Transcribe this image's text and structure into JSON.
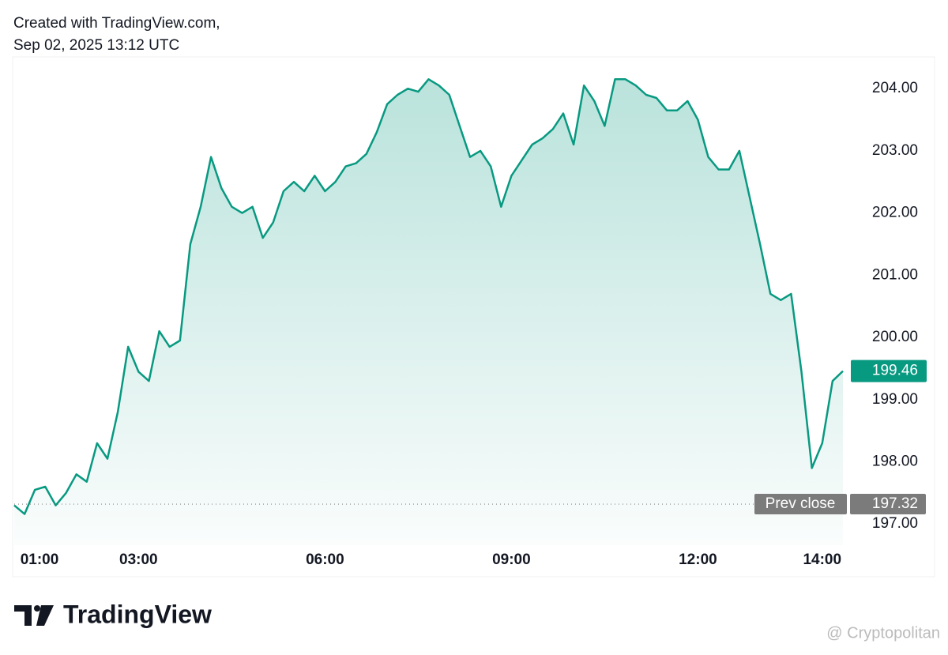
{
  "header": {
    "line1": "Created with TradingView.com,",
    "line2": "Sep 02, 2025 13:12 UTC"
  },
  "footer": {
    "logo": "TradingView",
    "watermark": "@ Cryptopolitan"
  },
  "chart_data": {
    "type": "area",
    "color": "#089981",
    "x": [
      "01:00",
      "01:10",
      "01:20",
      "01:30",
      "01:40",
      "01:50",
      "02:00",
      "02:10",
      "02:20",
      "02:30",
      "02:40",
      "02:50",
      "03:00",
      "03:10",
      "03:20",
      "03:30",
      "03:40",
      "03:50",
      "04:00",
      "04:10",
      "04:20",
      "04:30",
      "04:40",
      "04:50",
      "05:00",
      "05:10",
      "05:20",
      "05:30",
      "05:40",
      "05:50",
      "06:00",
      "06:10",
      "06:20",
      "06:30",
      "06:40",
      "06:50",
      "07:00",
      "07:10",
      "07:20",
      "07:30",
      "07:40",
      "07:50",
      "08:00",
      "08:10",
      "08:20",
      "08:30",
      "08:40",
      "08:50",
      "09:00",
      "09:10",
      "09:20",
      "09:30",
      "09:40",
      "09:50",
      "10:00",
      "10:10",
      "10:20",
      "10:30",
      "10:40",
      "10:50",
      "11:00",
      "11:10",
      "11:20",
      "11:30",
      "11:40",
      "11:50",
      "12:00",
      "12:10",
      "12:20",
      "12:30",
      "12:40",
      "12:50",
      "13:00",
      "13:10",
      "13:20",
      "13:30",
      "13:40",
      "13:50",
      "14:00",
      "14:10",
      "14:20"
    ],
    "values": [
      197.3,
      197.16,
      197.55,
      197.6,
      197.3,
      197.5,
      197.8,
      197.68,
      198.3,
      198.05,
      198.8,
      199.85,
      199.45,
      199.3,
      200.1,
      199.85,
      199.95,
      201.5,
      202.1,
      202.9,
      202.4,
      202.1,
      202.0,
      202.1,
      201.6,
      201.85,
      202.35,
      202.5,
      202.35,
      202.6,
      202.35,
      202.5,
      202.75,
      202.8,
      202.95,
      203.3,
      203.75,
      203.9,
      204.0,
      203.95,
      204.15,
      204.05,
      203.9,
      203.4,
      202.9,
      203.0,
      202.75,
      202.1,
      202.6,
      202.85,
      203.1,
      203.2,
      203.35,
      203.6,
      203.1,
      204.05,
      203.8,
      203.4,
      204.15,
      204.15,
      204.05,
      203.9,
      203.85,
      203.65,
      203.65,
      203.8,
      203.5,
      202.9,
      202.7,
      202.7,
      203.0,
      202.25,
      201.5,
      200.7,
      200.6,
      200.7,
      199.45,
      197.9,
      198.3,
      199.3,
      199.46
    ],
    "xticks": [
      "01:00",
      "03:00",
      "06:00",
      "09:00",
      "12:00",
      "14:00"
    ],
    "ylim": [
      196.66,
      204.51
    ],
    "yticks": [
      {
        "value": 197,
        "label": "197.00"
      },
      {
        "value": 198,
        "label": "198.00"
      },
      {
        "value": 199,
        "label": "199.00"
      },
      {
        "value": 200,
        "label": "200.00"
      },
      {
        "value": 201,
        "label": "201.00"
      },
      {
        "value": 202,
        "label": "202.00"
      },
      {
        "value": 203,
        "label": "203.00"
      },
      {
        "value": 204,
        "label": "204.00"
      }
    ],
    "last_price": 199.46,
    "prev_close": {
      "label": "Prev close",
      "value": 197.32
    }
  }
}
